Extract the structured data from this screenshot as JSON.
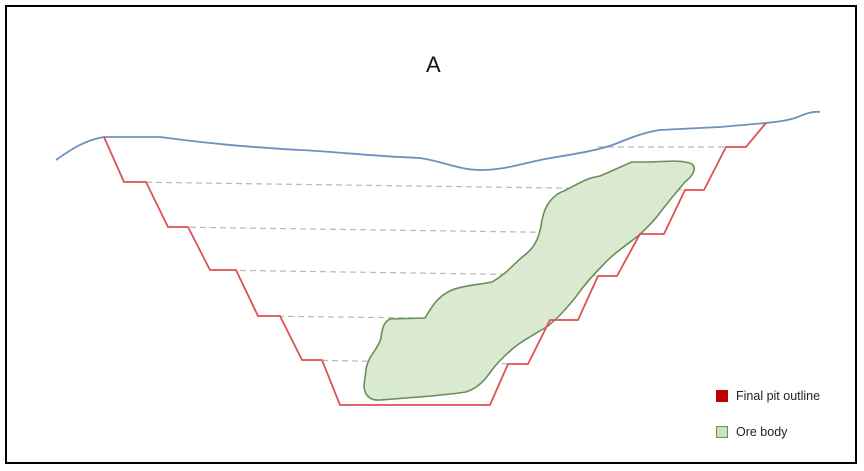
{
  "title": "A",
  "legend": [
    {
      "label": "Final pit outline",
      "color": "#c00000",
      "kind": "filled"
    },
    {
      "label": "Ore body",
      "color": "#c9e3bf",
      "border": "#6a8f5b",
      "kind": "outlined"
    }
  ],
  "colors": {
    "ground_surface": "#6f8fc0",
    "pit_outline": "#e05050",
    "ore_fill": "#d9ead0",
    "ore_stroke": "#6a8f5b",
    "bench_lines": "#b8b8b8"
  }
}
